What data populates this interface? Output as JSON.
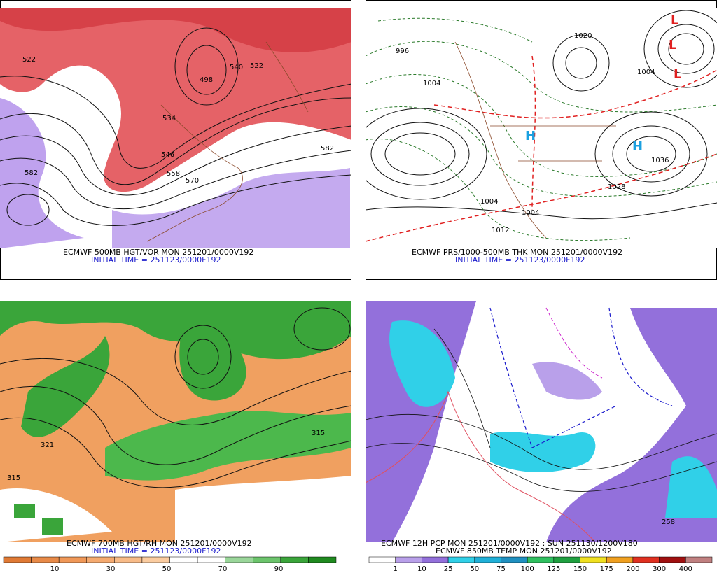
{
  "panels": [
    {
      "caption": "ECMWF 500MB HGT/VOR MON 251201/0000V192",
      "initial_time": "INITIAL TIME = 251123/0000F192",
      "contour_labels": [
        "522",
        "498",
        "540",
        "522",
        "534",
        "546",
        "558",
        "570",
        "582",
        "582"
      ]
    },
    {
      "caption": "ECMWF PRS/1000-500MB THK MON 251201/0000V192",
      "initial_time": "INITIAL TIME = 251123/0000F192",
      "contour_labels": [
        "996",
        "1004",
        "1020",
        "1004",
        "1036",
        "1028",
        "1004",
        "1004",
        "1012"
      ],
      "pressure_centers": [
        "H",
        "H",
        "L",
        "L",
        "L"
      ]
    },
    {
      "caption": "ECMWF 700MB HGT/RH MON 251201/0000V192",
      "initial_time": "INITIAL TIME = 251123/0000F192",
      "contour_labels": [
        "321",
        "315",
        "315"
      ],
      "colorbar_labels": [
        10,
        30,
        50,
        70,
        90
      ]
    },
    {
      "caption": "ECMWF 12H PCP MON 251201/0000V192 : SUN 251130/1200V180",
      "initial_time": "ECMWF 850MB TEMP MON 251201/0000V192",
      "contour_labels": [
        "258"
      ],
      "colorbar_labels": [
        1,
        10,
        25,
        50,
        75,
        100,
        125,
        150,
        175,
        200,
        300,
        400
      ]
    }
  ]
}
